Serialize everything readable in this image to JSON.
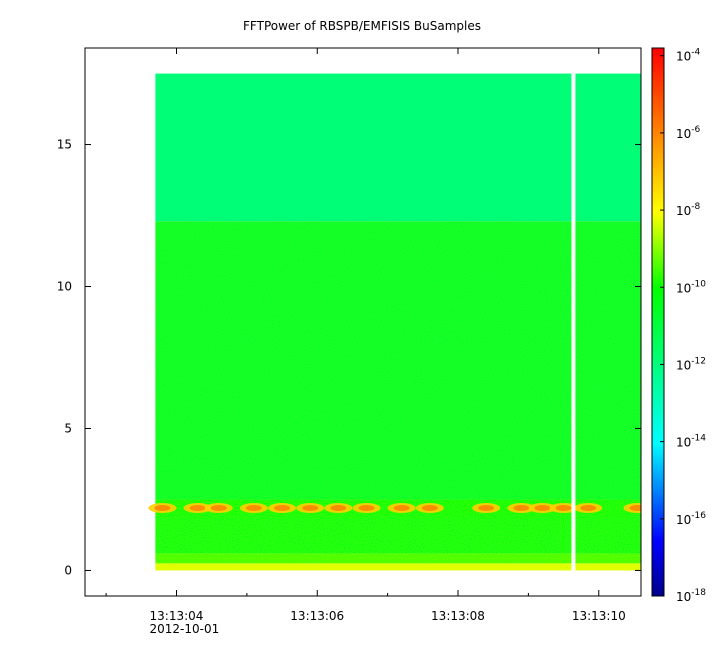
{
  "chart_data": {
    "type": "heatmap",
    "title": "FFTPower of RBSPB/EMFISIS  BuSamples",
    "xlabel": "",
    "ylabel": "",
    "x_ticks_major": [
      {
        "t": 4,
        "label": "13:13:04",
        "sublabel": "2012-10-01"
      },
      {
        "t": 6,
        "label": "13:13:06"
      },
      {
        "t": 8,
        "label": "13:13:08"
      },
      {
        "t": 10,
        "label": "13:13:10"
      }
    ],
    "x_ticks_minor": [
      3,
      5,
      7,
      9
    ],
    "xlim": [
      2.7,
      10.6
    ],
    "data_x_range": [
      3.7,
      10.6
    ],
    "gap_x": 9.64,
    "y_ticks": [
      {
        "v": 0,
        "label": "0"
      },
      {
        "v": 5,
        "label": "5"
      },
      {
        "v": 10,
        "label": "10"
      },
      {
        "v": 15,
        "label": "15"
      }
    ],
    "ylim": [
      -0.9,
      18.4
    ],
    "data_y_range": [
      0,
      17.5
    ],
    "regions": [
      {
        "y": [
          0,
          0.25
        ],
        "level_log10": -8.3
      },
      {
        "y": [
          0.25,
          0.6
        ],
        "level_log10": -9.6
      },
      {
        "y": [
          0.6,
          1.9
        ],
        "level_log10": -10.3
      },
      {
        "y": [
          1.9,
          2.5
        ],
        "level_log10": -10.2,
        "note": "intermittent band",
        "intense_at": [
          3.8,
          4.3,
          4.6,
          5.1,
          5.5,
          5.9,
          6.3,
          6.7,
          7.2,
          7.6,
          8.4,
          8.9,
          9.2,
          9.5,
          9.85,
          10.55
        ]
      },
      {
        "y": [
          2.5,
          12.3
        ],
        "level_log10": -10.7
      },
      {
        "y": [
          12.3,
          17.5
        ],
        "level_log10": -11.9
      }
    ],
    "colorbar": {
      "scale": "log",
      "range_log10": [
        -18,
        -3.8
      ],
      "ticks": [
        {
          "base": "10",
          "exp": "-4",
          "log": -4
        },
        {
          "base": "10",
          "exp": "-6",
          "log": -6
        },
        {
          "base": "10",
          "exp": "-8",
          "log": -8
        },
        {
          "base": "10",
          "exp": "-10",
          "log": -10
        },
        {
          "base": "10",
          "exp": "-12",
          "log": -12
        },
        {
          "base": "10",
          "exp": "-14",
          "log": -14
        },
        {
          "base": "10",
          "exp": "-16",
          "log": -16
        },
        {
          "base": "10",
          "exp": "-18",
          "log": -18
        }
      ],
      "colors": [
        "#00008b",
        "#0000ff",
        "#00ffff",
        "#00ff80",
        "#00ff00",
        "#ffff00",
        "#ff8000",
        "#ff0000"
      ]
    },
    "grid": false,
    "legend": "colorbar-right"
  }
}
